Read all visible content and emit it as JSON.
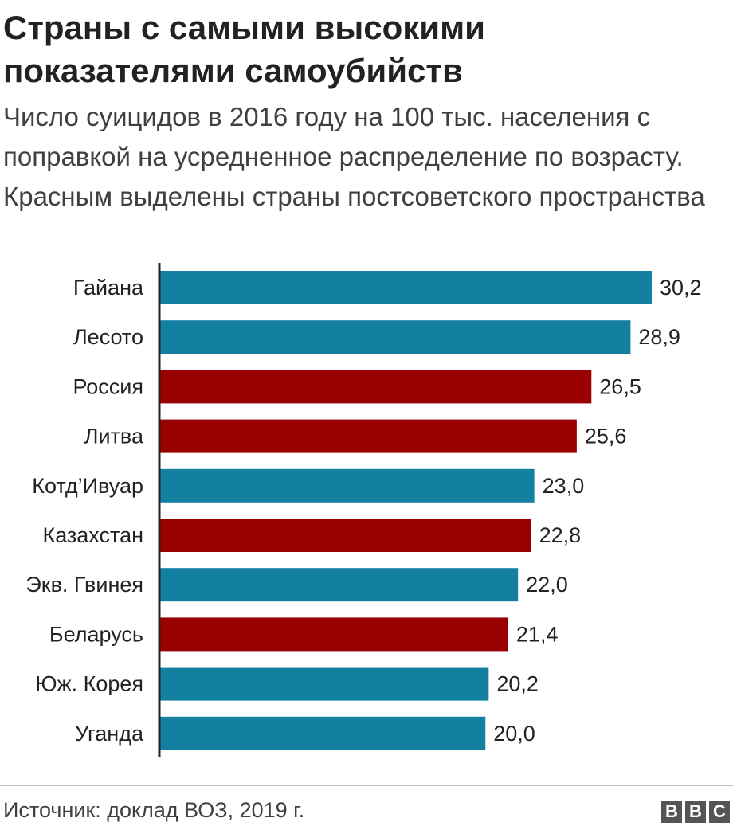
{
  "chart_data": {
    "type": "bar",
    "orientation": "horizontal",
    "title": "Страны с самыми высокими показателями самоубийств",
    "subtitle": "Число суицидов в 2016 году на 100 тыс. населения с поправкой на усредненное распределение по возрасту. Красным выделены страны постсоветского пространства",
    "categories": [
      "Гайана",
      "Лесото",
      "Россия",
      "Литва",
      "Котд’Ивуар",
      "Казахстан",
      "Экв. Гвинея",
      "Беларусь",
      "Юж. Корея",
      "Уганда"
    ],
    "values": [
      30.2,
      28.9,
      26.5,
      25.6,
      23.0,
      22.8,
      22.0,
      21.4,
      20.2,
      20.0
    ],
    "value_labels": [
      "30,2",
      "28,9",
      "26,5",
      "25,6",
      "23,0",
      "22,8",
      "22,0",
      "21,4",
      "20,2",
      "20,0"
    ],
    "post_soviet": [
      false,
      false,
      true,
      true,
      false,
      true,
      false,
      true,
      false,
      false
    ],
    "colors": {
      "default": "#1380a1",
      "post_soviet": "#990000",
      "axis": "#222222"
    },
    "xlim": [
      0,
      30.2
    ],
    "grid": false,
    "legend": "none"
  },
  "footer": {
    "source": "Источник: доклад ВОЗ, 2019 г.",
    "logo_letters": [
      "B",
      "B",
      "C"
    ]
  }
}
